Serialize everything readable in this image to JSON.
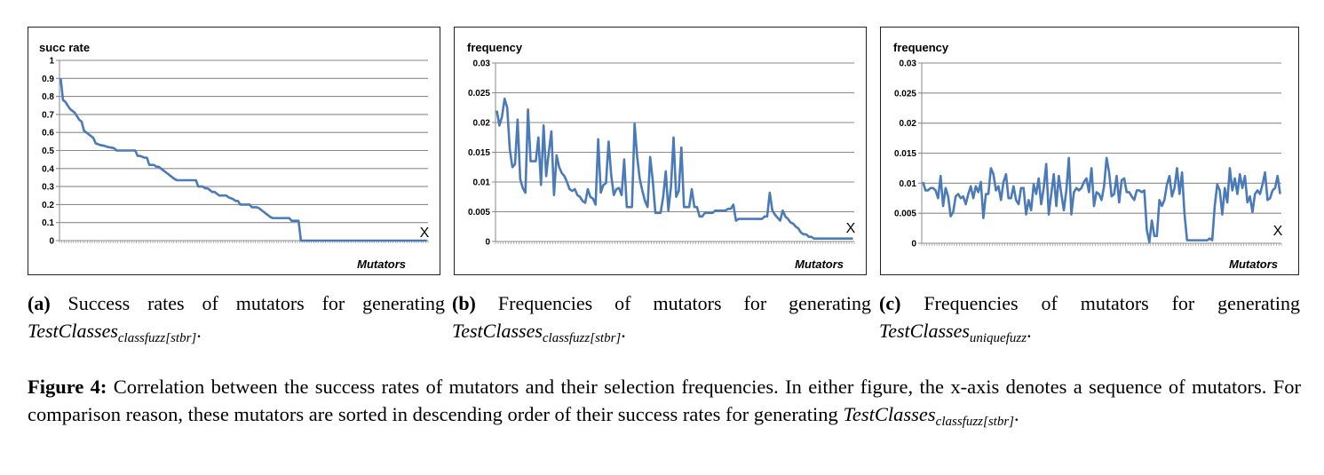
{
  "chart_data": [
    {
      "type": "line",
      "ylabel": "succ rate",
      "xlabel": "Mutators",
      "x_marker": "X",
      "ylim": [
        0,
        1
      ],
      "yticks": [
        "0",
        "0.1",
        "0.2",
        "0.3",
        "0.4",
        "0.5",
        "0.6",
        "0.7",
        "0.8",
        "0.9",
        "1"
      ],
      "grid": true,
      "series_color": "#4a7ab8",
      "values": [
        0.9,
        0.78,
        0.77,
        0.75,
        0.73,
        0.72,
        0.71,
        0.69,
        0.67,
        0.66,
        0.61,
        0.6,
        0.59,
        0.58,
        0.57,
        0.54,
        0.535,
        0.53,
        0.528,
        0.525,
        0.52,
        0.518,
        0.515,
        0.512,
        0.5,
        0.5,
        0.5,
        0.5,
        0.5,
        0.5,
        0.5,
        0.5,
        0.5,
        0.47,
        0.47,
        0.465,
        0.46,
        0.46,
        0.42,
        0.42,
        0.42,
        0.41,
        0.41,
        0.4,
        0.39,
        0.38,
        0.37,
        0.36,
        0.35,
        0.34,
        0.335,
        0.335,
        0.335,
        0.335,
        0.335,
        0.335,
        0.335,
        0.335,
        0.335,
        0.3,
        0.3,
        0.3,
        0.29,
        0.29,
        0.28,
        0.27,
        0.27,
        0.26,
        0.25,
        0.25,
        0.25,
        0.25,
        0.24,
        0.235,
        0.23,
        0.22,
        0.22,
        0.2,
        0.2,
        0.2,
        0.2,
        0.2,
        0.185,
        0.185,
        0.185,
        0.18,
        0.17,
        0.16,
        0.15,
        0.14,
        0.13,
        0.125,
        0.125,
        0.125,
        0.125,
        0.125,
        0.125,
        0.125,
        0.125,
        0.11,
        0.11,
        0.11,
        0.11,
        0,
        0,
        0,
        0,
        0,
        0,
        0,
        0,
        0,
        0,
        0,
        0,
        0,
        0,
        0,
        0,
        0,
        0,
        0,
        0,
        0,
        0,
        0,
        0,
        0,
        0,
        0,
        0,
        0,
        0,
        0,
        0,
        0,
        0,
        0,
        0,
        0,
        0,
        0,
        0,
        0,
        0,
        0,
        0,
        0,
        0,
        0,
        0,
        0,
        0,
        0,
        0,
        0,
        0,
        0
      ]
    },
    {
      "type": "line",
      "ylabel": "frequency",
      "xlabel": "Mutators",
      "x_marker": "X",
      "ylim": [
        0,
        0.03
      ],
      "yticks": [
        "0",
        "0.005",
        "0.01",
        "0.015",
        "0.02",
        "0.025",
        "0.03"
      ],
      "grid": true,
      "series_color": "#4a7ab8",
      "values": [
        0.022,
        0.0195,
        0.021,
        0.024,
        0.0225,
        0.0155,
        0.0125,
        0.013,
        0.0205,
        0.0105,
        0.009,
        0.0082,
        0.0222,
        0.0135,
        0.0135,
        0.0135,
        0.0175,
        0.0095,
        0.0195,
        0.011,
        0.015,
        0.0185,
        0.0078,
        0.0145,
        0.0125,
        0.0115,
        0.011,
        0.01,
        0.0088,
        0.0085,
        0.0088,
        0.0078,
        0.0075,
        0.0068,
        0.0065,
        0.0088,
        0.0075,
        0.0072,
        0.0062,
        0.0172,
        0.0082,
        0.0095,
        0.0098,
        0.0168,
        0.0112,
        0.0078,
        0.0088,
        0.009,
        0.0078,
        0.0138,
        0.0058,
        0.0058,
        0.0058,
        0.0198,
        0.0142,
        0.0105,
        0.0085,
        0.0068,
        0.0058,
        0.0142,
        0.0102,
        0.0048,
        0.0048,
        0.0048,
        0.0075,
        0.0118,
        0.0052,
        0.0092,
        0.0175,
        0.0075,
        0.0085,
        0.0158,
        0.0058,
        0.0058,
        0.0058,
        0.0088,
        0.0058,
        0.0058,
        0.0042,
        0.0042,
        0.0048,
        0.0048,
        0.0048,
        0.0048,
        0.0052,
        0.0052,
        0.0052,
        0.0052,
        0.0052,
        0.0055,
        0.0055,
        0.0062,
        0.0035,
        0.0038,
        0.0038,
        0.0038,
        0.0038,
        0.0038,
        0.0038,
        0.0038,
        0.0038,
        0.0038,
        0.0038,
        0.0042,
        0.0042,
        0.0082,
        0.0052,
        0.0045,
        0.004,
        0.0035,
        0.0052,
        0.0042,
        0.0038,
        0.0032,
        0.003,
        0.0025,
        0.0022,
        0.0015,
        0.0012,
        0.0012,
        0.0008,
        0.0008,
        0.0005,
        0.0005,
        0.0005,
        0.0005,
        0.0005,
        0.0005,
        0.0005,
        0.0005,
        0.0005,
        0.0005,
        0.0005,
        0.0005,
        0.0005,
        0.0005,
        0.0005,
        0.0005
      ]
    },
    {
      "type": "line",
      "ylabel": "frequency",
      "xlabel": "Mutators",
      "x_marker": "X",
      "ylim": [
        0,
        0.03
      ],
      "yticks": [
        "0",
        "0.005",
        "0.01",
        "0.015",
        "0.02",
        "0.025",
        "0.03"
      ],
      "grid": true,
      "series_color": "#4a7ab8",
      "values": [
        0.0102,
        0.0088,
        0.0088,
        0.0092,
        0.0092,
        0.0088,
        0.0075,
        0.0112,
        0.0062,
        0.0092,
        0.0078,
        0.0045,
        0.0052,
        0.0078,
        0.0082,
        0.0075,
        0.0078,
        0.0065,
        0.0082,
        0.0095,
        0.0075,
        0.0095,
        0.0085,
        0.0102,
        0.0042,
        0.0082,
        0.0082,
        0.0125,
        0.0115,
        0.0088,
        0.0095,
        0.0072,
        0.0102,
        0.0115,
        0.0075,
        0.0075,
        0.0095,
        0.0072,
        0.0065,
        0.0092,
        0.0092,
        0.0048,
        0.0072,
        0.0055,
        0.0098,
        0.0082,
        0.0108,
        0.0065,
        0.0092,
        0.0132,
        0.0048,
        0.0082,
        0.0115,
        0.0062,
        0.0112,
        0.0082,
        0.0055,
        0.0088,
        0.0142,
        0.0048,
        0.0085,
        0.0092,
        0.0088,
        0.0092,
        0.0102,
        0.0108,
        0.0085,
        0.0125,
        0.0062,
        0.0085,
        0.0082,
        0.0072,
        0.0095,
        0.0142,
        0.0118,
        0.0078,
        0.0082,
        0.0112,
        0.0068,
        0.0105,
        0.0108,
        0.0085,
        0.0085,
        0.0078,
        0.0072,
        0.0088,
        0.0088,
        0.0085,
        0.0088,
        0.0022,
        0.0002,
        0.0038,
        0.0012,
        0.0012,
        0.0072,
        0.0062,
        0.0072,
        0.0098,
        0.0112,
        0.0078,
        0.0092,
        0.0125,
        0.0082,
        0.0118,
        0.0048,
        0.0005,
        0.0005,
        0.0005,
        0.0005,
        0.0005,
        0.0005,
        0.0005,
        0.0005,
        0.0005,
        0.0008,
        0.0005,
        0.0062,
        0.0098,
        0.0088,
        0.0048,
        0.0092,
        0.0068,
        0.0125,
        0.0088,
        0.0108,
        0.0082,
        0.0115,
        0.0092,
        0.0112,
        0.0068,
        0.0078,
        0.0052,
        0.0082,
        0.0088,
        0.0082,
        0.0098,
        0.0118,
        0.0072,
        0.0075,
        0.0088,
        0.0092,
        0.0112,
        0.0082
      ]
    }
  ],
  "captions": {
    "a": {
      "label": "(a)",
      "text": " Success rates of mutators for generating ",
      "math": "TestClasses",
      "sub": "classfuzz[stbr]",
      "end": "."
    },
    "b": {
      "label": "(b)",
      "text": " Frequencies of mutators for generating ",
      "math": "TestClasses",
      "sub": "classfuzz[stbr]",
      "end": "."
    },
    "c": {
      "label": "(c)",
      "text": " Frequencies of mutators for generating ",
      "math": "TestClasses",
      "sub": "uniquefuzz",
      "end": "."
    }
  },
  "figure_caption": {
    "label": "Figure 4:",
    "text": " Correlation between the success rates of mutators and their selection frequencies. In either figure, the x-axis denotes a sequence of mutators. For comparison reason, these mutators are sorted in descending order of their success rates for generating ",
    "math": "TestClasses",
    "sub": "classfuzz[stbr]",
    "end": "."
  }
}
